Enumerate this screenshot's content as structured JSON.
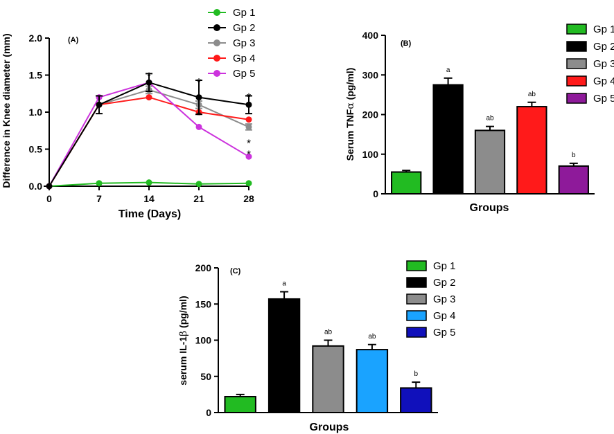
{
  "chart_data": [
    {
      "panel": "(A)",
      "type": "line",
      "xlabel": "Time (Days)",
      "ylabel": "Difference in Knee diameter (mm)",
      "x": [
        0,
        7,
        14,
        21,
        28
      ],
      "xticks": [
        "0",
        "7",
        "14",
        "21",
        "28"
      ],
      "ylim": [
        0,
        2.0
      ],
      "yticks": [
        "0.0",
        "0.5",
        "1.0",
        "1.5",
        "2.0"
      ],
      "series": [
        {
          "name": "Gp 1",
          "color": "#22bb22",
          "values": [
            0,
            0.04,
            0.05,
            0.03,
            0.04
          ],
          "err": [
            0,
            0,
            0,
            0,
            0
          ]
        },
        {
          "name": "Gp 2",
          "color": "#000000",
          "values": [
            0,
            1.1,
            1.4,
            1.2,
            1.1
          ],
          "err": [
            0,
            0.12,
            0.12,
            0.23,
            0.12
          ]
        },
        {
          "name": "Gp 3",
          "color": "#8c8c8c",
          "values": [
            0,
            1.1,
            1.3,
            1.1,
            0.8
          ],
          "err": [
            0,
            0,
            0.05,
            0.05,
            0.04
          ]
        },
        {
          "name": "Gp 4",
          "color": "#ff1a1a",
          "values": [
            0,
            1.1,
            1.2,
            1.0,
            0.9
          ],
          "err": [
            0,
            0,
            0,
            0,
            0
          ]
        },
        {
          "name": "Gp 5",
          "color": "#cc33dd",
          "values": [
            0,
            1.2,
            1.4,
            0.8,
            0.4
          ],
          "err": [
            0,
            0,
            0,
            0,
            0
          ]
        }
      ],
      "annotations": [
        {
          "text": "*",
          "x": 14,
          "y": 1.53
        },
        {
          "text": "*",
          "x": 21,
          "y": 1.45
        },
        {
          "text": "*",
          "x": 28,
          "y": 1.25
        },
        {
          "text": "*",
          "x": 21,
          "y": 1.0
        },
        {
          "text": "*",
          "x": 28,
          "y": 0.62
        },
        {
          "text": "*",
          "x": 28,
          "y": 0.47
        }
      ]
    },
    {
      "panel": "(B)",
      "type": "bar",
      "xlabel": "Groups",
      "ylabel_main": "Serum TNF",
      "ylabel_greek": "α",
      "ylabel_unit": " (pg/ml)",
      "ylim": [
        0,
        400
      ],
      "yticks": [
        "0",
        "100",
        "200",
        "300",
        "400"
      ],
      "categories": [
        "Gp 1",
        "Gp 2",
        "Gp 3",
        "Gp 4",
        "Gp 5"
      ],
      "values": [
        55,
        275,
        160,
        220,
        70
      ],
      "err": [
        4,
        17,
        10,
        11,
        7
      ],
      "colors": [
        "#22bb22",
        "#000000",
        "#8c8c8c",
        "#ff1a1a",
        "#8e1a9a"
      ],
      "labels": [
        "",
        "a",
        "ab",
        "ab",
        "b"
      ]
    },
    {
      "panel": "(C)",
      "type": "bar",
      "xlabel": "Groups",
      "ylabel_main": "serum IL-1",
      "ylabel_greek": "β",
      "ylabel_unit": " (pg/ml)",
      "ylim": [
        0,
        200
      ],
      "yticks": [
        "0",
        "50",
        "100",
        "150",
        "200"
      ],
      "categories": [
        "Gp 1",
        "Gp 2",
        "Gp 3",
        "Gp 4",
        "Gp 5"
      ],
      "values": [
        22,
        157,
        92,
        87,
        34
      ],
      "err": [
        3,
        10,
        8,
        7,
        8
      ],
      "colors": [
        "#22bb22",
        "#000000",
        "#8c8c8c",
        "#1aa3ff",
        "#1010bb"
      ],
      "labels": [
        "",
        "a",
        "ab",
        "ab",
        "b"
      ]
    }
  ]
}
